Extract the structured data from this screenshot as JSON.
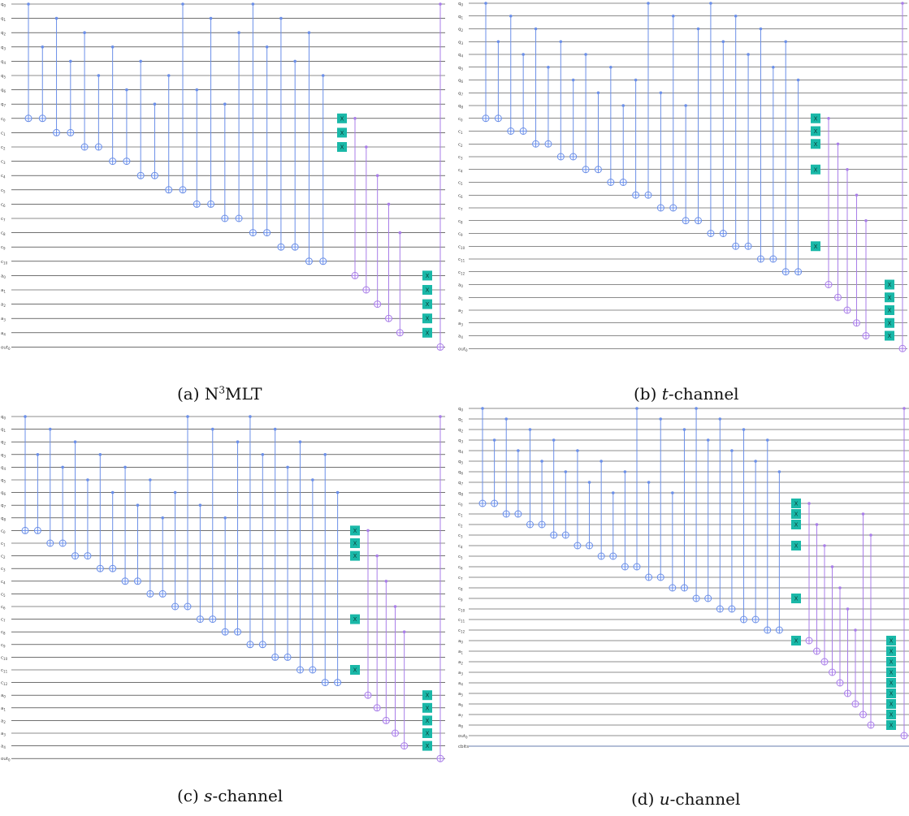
{
  "figure": {
    "panels": [
      {
        "id": "a",
        "caption": {
          "prefix": "(a) ",
          "main": "N",
          "sup": "3",
          "suffix": "MLT",
          "italic": ""
        },
        "qubit_labels": [
          "q0",
          "q1",
          "q2",
          "q3",
          "q4",
          "q5",
          "q6",
          "q7"
        ],
        "c_labels": [
          "c0",
          "c1",
          "c2",
          "c3",
          "c4",
          "c5",
          "c6",
          "c7",
          "c8",
          "c9",
          "c10"
        ],
        "a_labels": [
          "a0",
          "a1",
          "a2",
          "a3",
          "a4"
        ],
        "out_label": "out0",
        "x_gate_wires": [
          8,
          9,
          10
        ],
        "cbits_label": ""
      },
      {
        "id": "b",
        "caption": {
          "prefix": "(b) ",
          "main": "",
          "sup": "",
          "suffix": "-channel",
          "italic": "t"
        },
        "qubit_labels": [
          "q0",
          "q1",
          "q2",
          "q3",
          "q4",
          "q5",
          "q6",
          "q7",
          "q8"
        ],
        "c_labels": [
          "c0",
          "c1",
          "c2",
          "c3",
          "c4",
          "c5",
          "c6",
          "c7",
          "c8",
          "c9",
          "c10",
          "c11",
          "c12"
        ],
        "a_labels": [
          "a0",
          "a1",
          "a2",
          "a3",
          "a4"
        ],
        "out_label": "out0",
        "x_gate_wires": [
          9,
          10,
          11,
          13,
          19
        ],
        "cbits_label": ""
      },
      {
        "id": "c",
        "caption": {
          "prefix": "(c) ",
          "main": "",
          "sup": "",
          "suffix": "-channel",
          "italic": "s"
        },
        "qubit_labels": [
          "q0",
          "q1",
          "q2",
          "q3",
          "q4",
          "q5",
          "q6",
          "q7",
          "q8"
        ],
        "c_labels": [
          "c0",
          "c1",
          "c2",
          "c3",
          "c4",
          "c5",
          "c6",
          "c7",
          "c8",
          "c9",
          "c10",
          "c11",
          "c12"
        ],
        "a_labels": [
          "a0",
          "a1",
          "a2",
          "a3",
          "a4"
        ],
        "out_label": "out0",
        "x_gate_wires": [
          9,
          10,
          11,
          16,
          20
        ],
        "cbits_label": ""
      },
      {
        "id": "d",
        "caption": {
          "prefix": "(d) ",
          "main": "",
          "sup": "",
          "suffix": "-channel",
          "italic": "u"
        },
        "qubit_labels": [
          "q0",
          "q1",
          "q2",
          "q3",
          "q4",
          "q5",
          "q6",
          "q7",
          "q8"
        ],
        "c_labels": [
          "c0",
          "c1",
          "c2",
          "c3",
          "c4",
          "c5",
          "c6",
          "c7",
          "c8",
          "c9",
          "c10",
          "c11",
          "c12"
        ],
        "a_labels": [
          "a0",
          "a1",
          "a2",
          "a3",
          "a4",
          "a5",
          "a6",
          "a7",
          "a8"
        ],
        "out_label": "out0",
        "x_gate_wires": [
          9,
          10,
          11,
          13,
          18,
          22
        ],
        "cbits_label": "cbits"
      }
    ],
    "colors": {
      "wire": "#1a1a1a",
      "cnot_blue": "#6b8fe8",
      "cnot_purple": "#a97ee8",
      "x_gate": "#1ab8a8",
      "x_gate_text": "#0c3d38"
    }
  }
}
